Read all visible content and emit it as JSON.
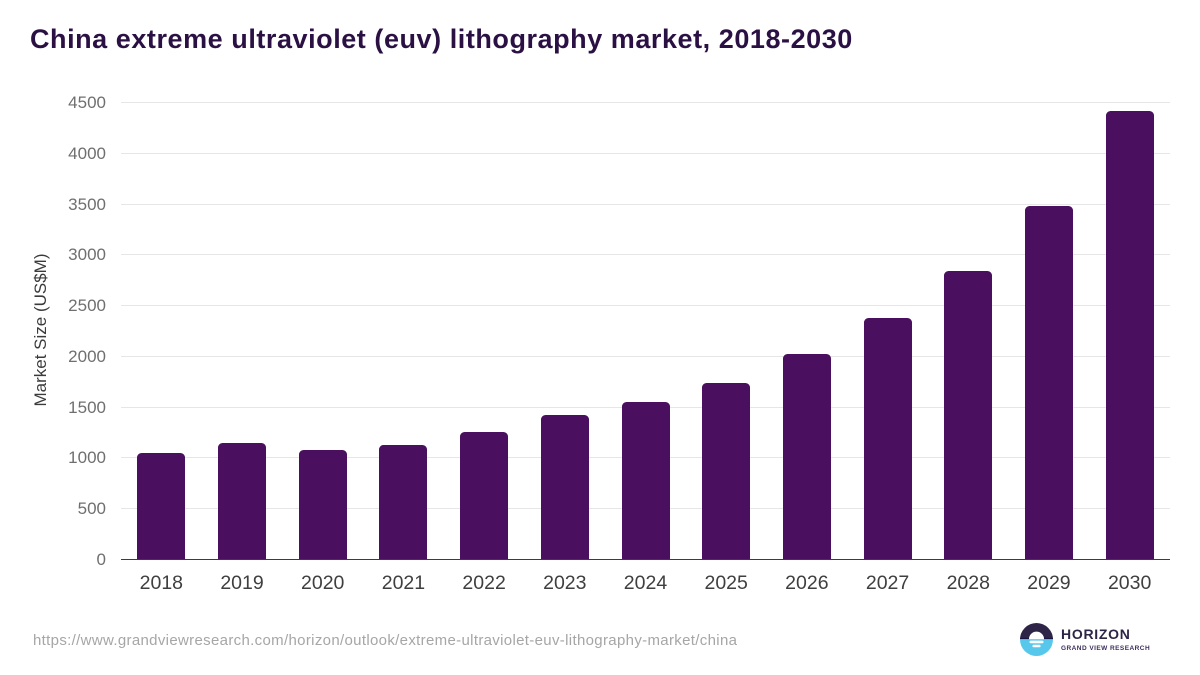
{
  "title": "China extreme ultraviolet (euv) lithography market, 2018-2030",
  "chart_data": {
    "type": "bar",
    "title": "China extreme ultraviolet (euv) lithography market, 2018-2030",
    "categories": [
      "2018",
      "2019",
      "2020",
      "2021",
      "2022",
      "2023",
      "2024",
      "2025",
      "2026",
      "2027",
      "2028",
      "2029",
      "2030"
    ],
    "values": [
      1040,
      1140,
      1070,
      1120,
      1250,
      1420,
      1545,
      1735,
      2015,
      2370,
      2840,
      3480,
      4410
    ],
    "xlabel": "",
    "ylabel": "Market Size (US$M)",
    "ylim": [
      0,
      4500
    ],
    "ytick_step": 500,
    "yticks": [
      0,
      500,
      1000,
      1500,
      2000,
      2500,
      3000,
      3500,
      4000,
      4500
    ],
    "grid": "horizontal",
    "legend": "none",
    "bar_color": "#4a0f5e"
  },
  "colors": {
    "background": "#ffffff",
    "title": "#2b1044",
    "bar": "#4a0f5e",
    "gridline": "#e6e6e6",
    "axis_line": "#3c3c3c",
    "ytick_label": "#6f6f6f",
    "xtick_label": "#3f3f3f",
    "source_url": "#a6a6a6",
    "logo_dark": "#2e2447",
    "logo_blue": "#57c7ec"
  },
  "footer": {
    "source_url": "https://www.grandviewresearch.com/horizon/outlook/extreme-ultraviolet-euv-lithography-market/china",
    "logo": {
      "brand": "HORIZON",
      "subtitle": "GRAND VIEW RESEARCH"
    }
  }
}
